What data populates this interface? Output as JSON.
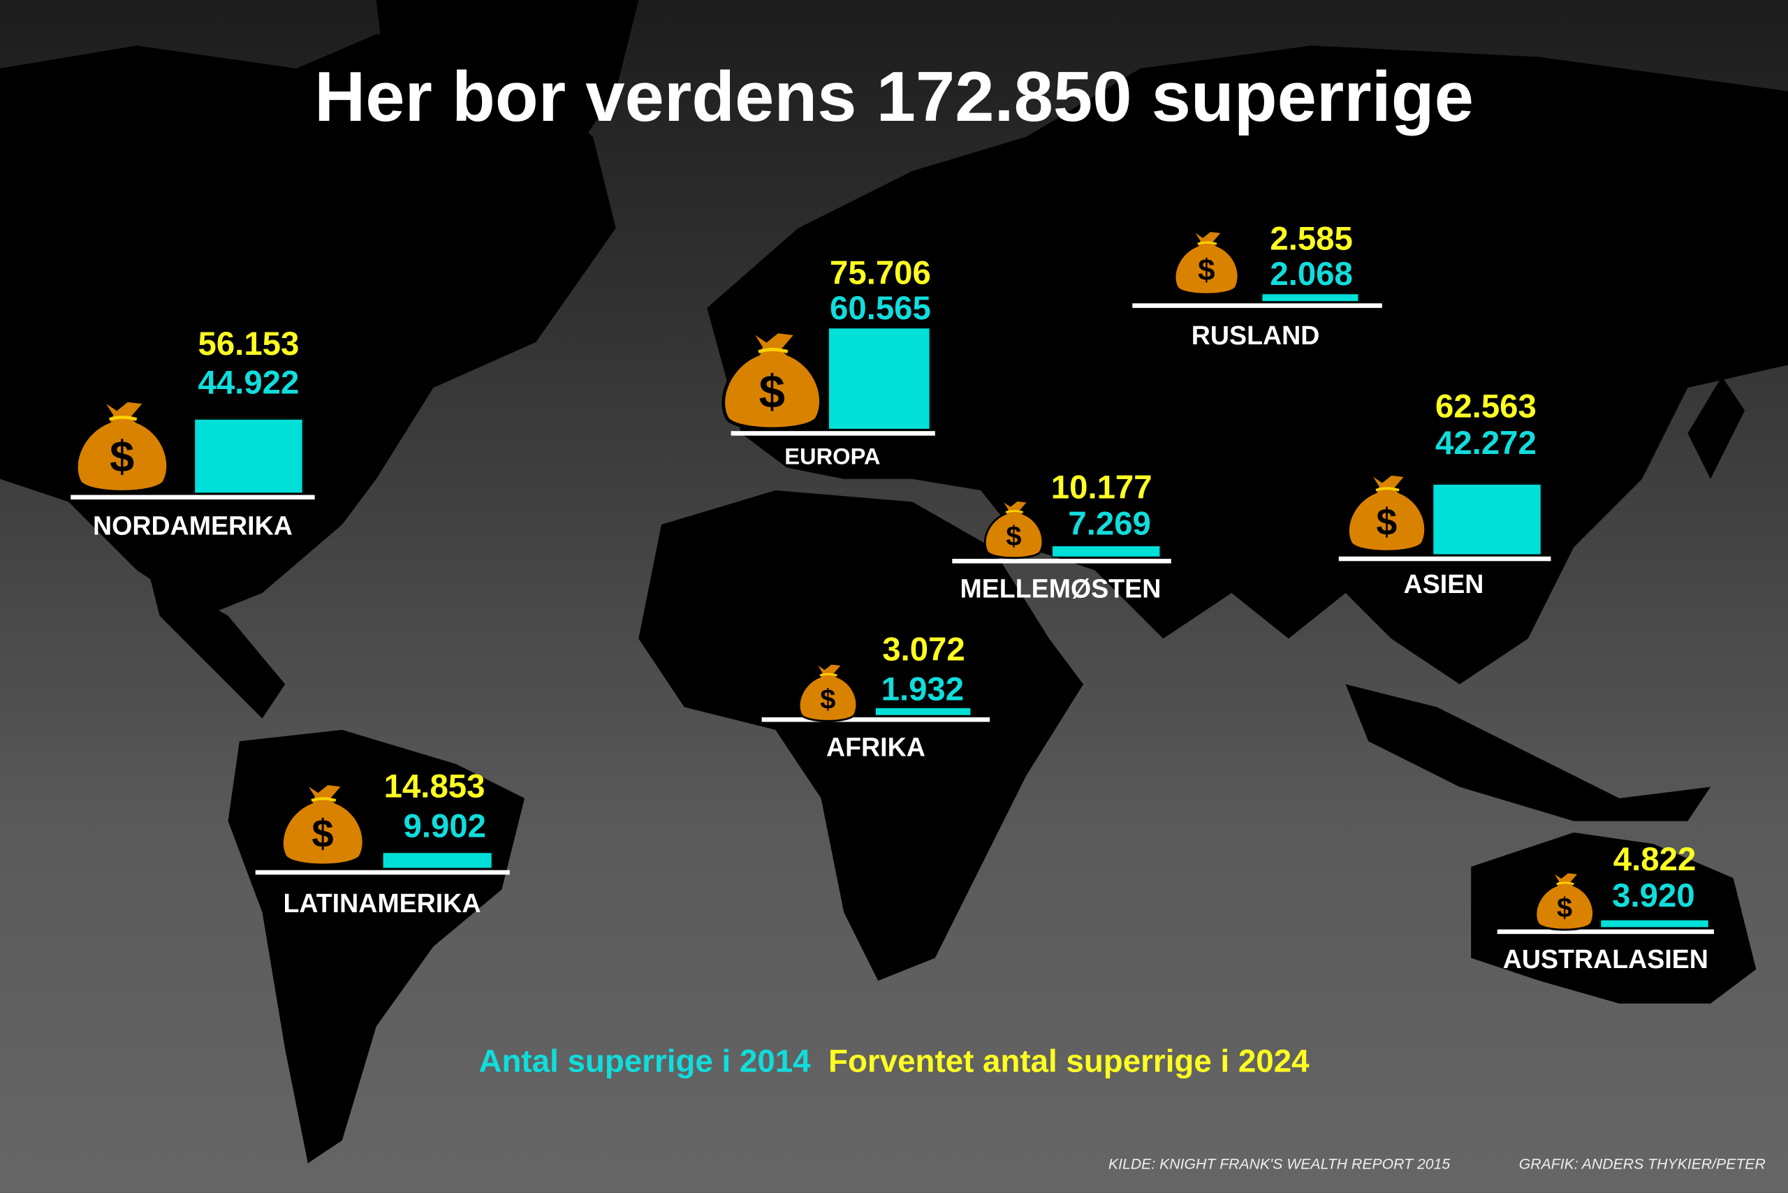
{
  "title": "Her bor verdens 172.850 superrige",
  "colors": {
    "value_2014": "#11dddd",
    "value_2024": "#ffff22",
    "bar": "#00e0d8",
    "bag": "#d98200",
    "land": "#000000"
  },
  "chart_data": {
    "type": "bar",
    "categories": [
      "NORDAMERIKA",
      "EUROPA",
      "RUSLAND",
      "MELLEMØSTEN",
      "ASIEN",
      "AFRIKA",
      "LATINAMERIKA",
      "AUSTRALASIEN"
    ],
    "series": [
      {
        "name": "Antal superrige i 2014",
        "values": [
          44922,
          60565,
          2068,
          7269,
          42272,
          1932,
          9902,
          3920
        ],
        "labels": [
          "44.922",
          "60.565",
          "2.068",
          "7.269",
          "42.272",
          "1.932",
          "9.902",
          "3.920"
        ]
      },
      {
        "name": "Forventet antal superrige i 2024",
        "values": [
          56153,
          75706,
          2585,
          10177,
          62563,
          3072,
          14853,
          4822
        ],
        "labels": [
          "56.153",
          "75.706",
          "2.585",
          "10.177",
          "62.563",
          "3.072",
          "14.853",
          "4.822"
        ]
      }
    ],
    "icon": "money-bag-icon"
  },
  "legend": {
    "item_2014": "Antal superrige i 2014",
    "item_2024": "Forventet antal superrige i 2024"
  },
  "credits": {
    "source": "KILDE: KNIGHT FRANK'S WEALTH REPORT 2015",
    "graphic": "GRAFIK: ANDERS THYKIER/PETER"
  }
}
